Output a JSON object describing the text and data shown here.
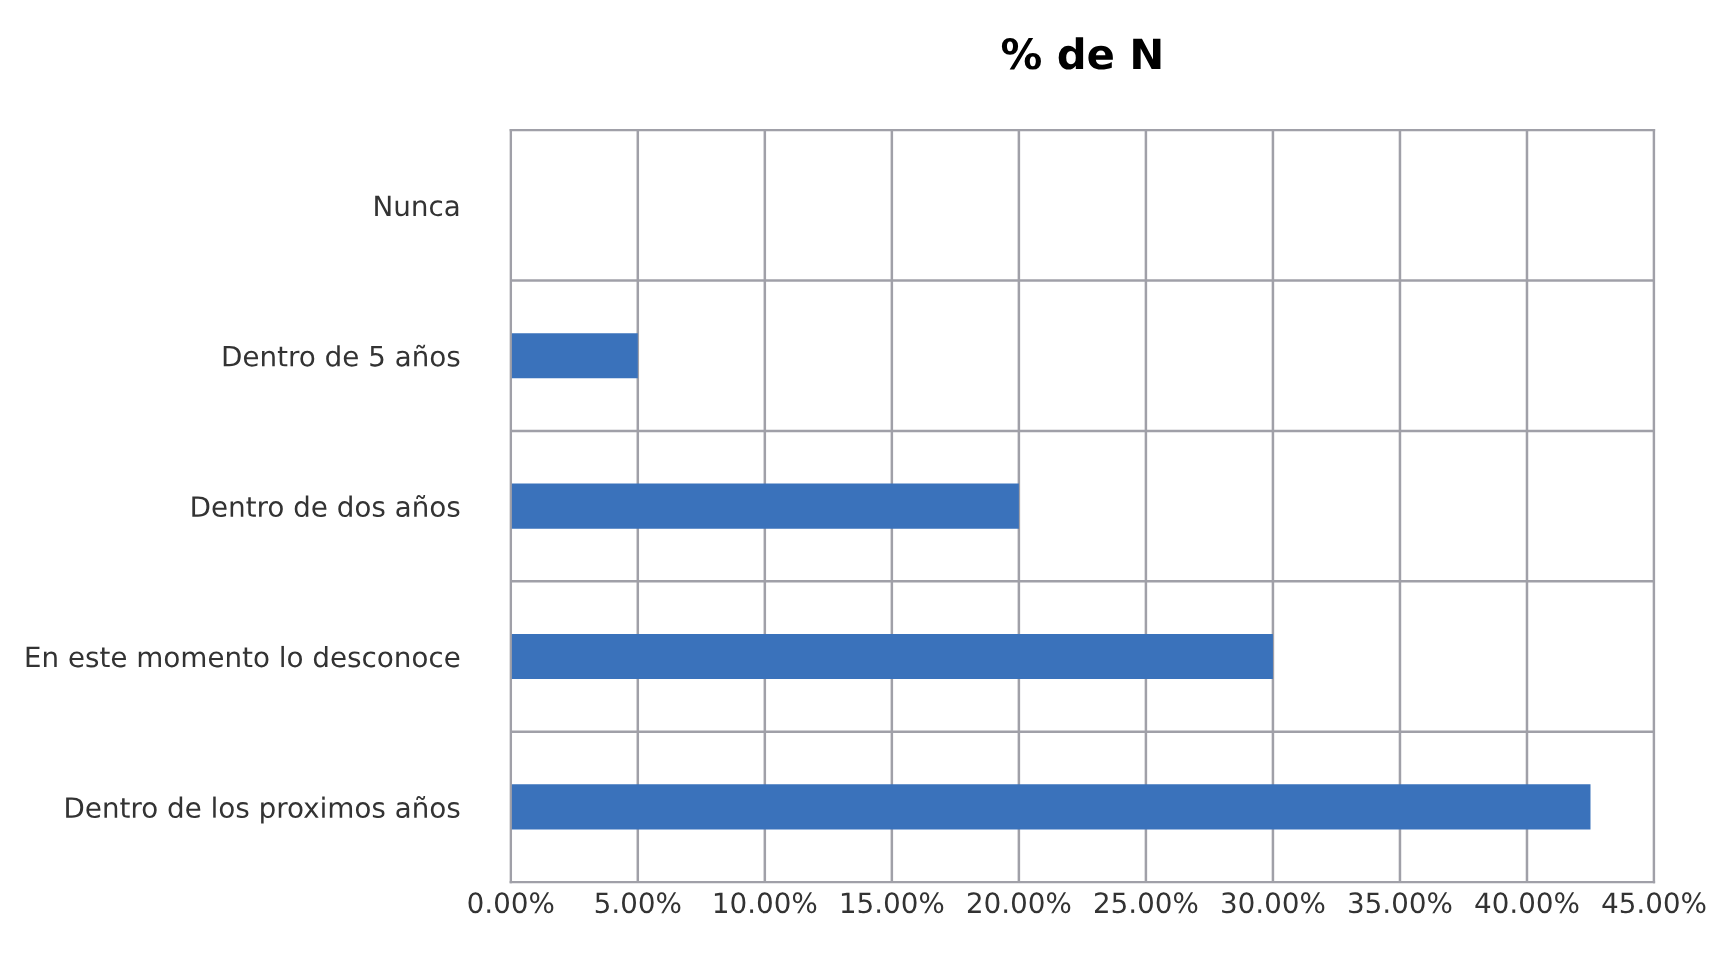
{
  "chart_data": {
    "type": "bar",
    "orientation": "horizontal",
    "title": "% de N",
    "categories": [
      "Nunca",
      "Dentro de 5 años",
      "Dentro de dos años",
      "En este momento lo desconoce",
      "Dentro de los proximos años"
    ],
    "values": [
      0,
      5,
      20,
      30,
      42.5
    ],
    "color": "#3a72bb",
    "xlim": [
      0,
      45
    ],
    "xticks": [
      {
        "value": 0,
        "label": "0.00%"
      },
      {
        "value": 5,
        "label": "5.00%"
      },
      {
        "value": 10,
        "label": "10.00%"
      },
      {
        "value": 15,
        "label": "15.00%"
      },
      {
        "value": 20,
        "label": "20.00%"
      },
      {
        "value": 25,
        "label": "25.00%"
      },
      {
        "value": 30,
        "label": "30.00%"
      },
      {
        "value": 35,
        "label": "35.00%"
      },
      {
        "value": 40,
        "label": "40.00%"
      },
      {
        "value": 45,
        "label": "45.00%"
      }
    ],
    "grid": true
  }
}
